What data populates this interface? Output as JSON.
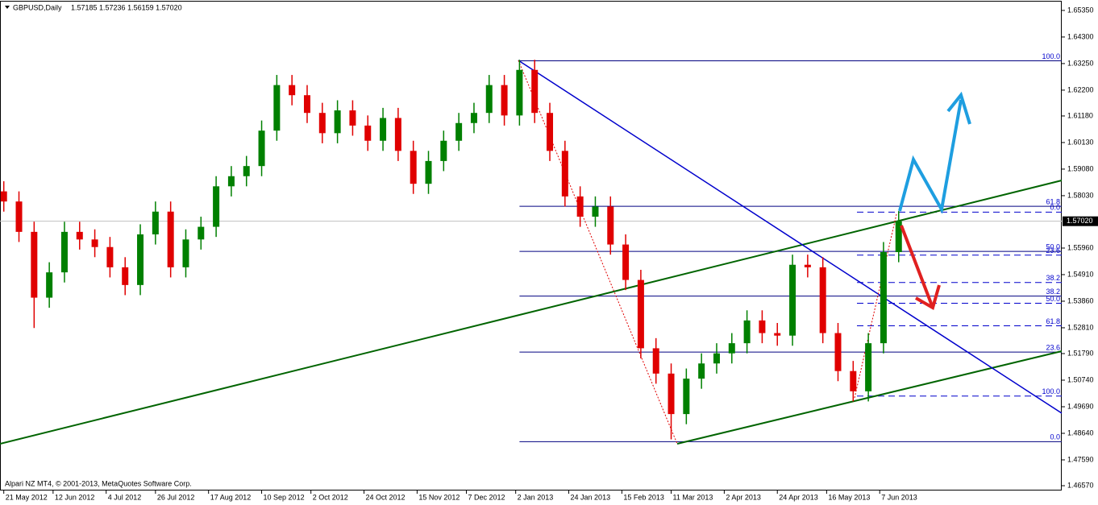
{
  "chart_data": {
    "type": "candlestick",
    "title": "GBPUSD,Daily",
    "ohlc_text": "1.57185 1.57236 1.56159 1.57020",
    "footer": "Alpari NZ MT4, © 2001-2013, MetaQuotes Software Corp.",
    "up_color": "#008000",
    "down_color": "#e00000",
    "grid": false,
    "xlim": [
      0,
      280
    ],
    "ylim": [
      1.4638,
      1.6573
    ],
    "xticks": [
      {
        "value": 1,
        "label": "21 May 2012"
      },
      {
        "value": 14,
        "label": "12 Jun 2012"
      },
      {
        "value": 28,
        "label": "4 Jul 2012"
      },
      {
        "value": 41,
        "label": "26 Jul 2012"
      },
      {
        "value": 55,
        "label": "17 Aug 2012"
      },
      {
        "value": 69,
        "label": "10 Sep 2012"
      },
      {
        "value": 82,
        "label": "2 Oct 2012"
      },
      {
        "value": 96,
        "label": "24 Oct 2012"
      },
      {
        "value": 110,
        "label": "15 Nov 2012"
      },
      {
        "value": 123,
        "label": "7 Dec 2012"
      },
      {
        "value": 136,
        "label": "2 Jan 2013"
      },
      {
        "value": 150,
        "label": "24 Jan 2013"
      },
      {
        "value": 164,
        "label": "15 Feb 2013"
      },
      {
        "value": 177,
        "label": "11 Mar 2013"
      },
      {
        "value": 191,
        "label": "2 Apr 2013"
      },
      {
        "value": 205,
        "label": "24 Apr 2013"
      },
      {
        "value": 218,
        "label": "16 May 2013"
      },
      {
        "value": 232,
        "label": "7 Jun 2013"
      }
    ],
    "yticks": [
      {
        "value": 1.6535,
        "label": "1.65350"
      },
      {
        "value": 1.643,
        "label": "1.64300"
      },
      {
        "value": 1.6325,
        "label": "1.63250"
      },
      {
        "value": 1.622,
        "label": "1.62200"
      },
      {
        "value": 1.6118,
        "label": "1.61180"
      },
      {
        "value": 1.6013,
        "label": "1.60130"
      },
      {
        "value": 1.5908,
        "label": "1.59080"
      },
      {
        "value": 1.5803,
        "label": "1.58030"
      },
      {
        "value": 1.5596,
        "label": "1.55960"
      },
      {
        "value": 1.5491,
        "label": "1.54910"
      },
      {
        "value": 1.5386,
        "label": "1.53860"
      },
      {
        "value": 1.5281,
        "label": "1.52810"
      },
      {
        "value": 1.5179,
        "label": "1.51790"
      },
      {
        "value": 1.5074,
        "label": "1.50740"
      },
      {
        "value": 1.4969,
        "label": "1.49690"
      },
      {
        "value": 1.4864,
        "label": "1.48640"
      },
      {
        "value": 1.4759,
        "label": "1.47590"
      },
      {
        "value": 1.4657,
        "label": "1.46570"
      }
    ],
    "current_price": {
      "value": 1.5702,
      "label": "1.57020"
    },
    "x": [
      1,
      5,
      9,
      13,
      17,
      21,
      25,
      29,
      33,
      37,
      41,
      45,
      49,
      53,
      57,
      61,
      65,
      69,
      73,
      77,
      81,
      85,
      89,
      93,
      97,
      101,
      105,
      109,
      113,
      117,
      121,
      125,
      129,
      133,
      137,
      141,
      145,
      149,
      153,
      157,
      161,
      165,
      169,
      173,
      177,
      181,
      185,
      189,
      193,
      197,
      201,
      205,
      209,
      213,
      217,
      221,
      225,
      229,
      233,
      237
    ],
    "open": [
      1.582,
      1.578,
      1.566,
      1.54,
      1.55,
      1.566,
      1.563,
      1.56,
      1.552,
      1.545,
      1.565,
      1.574,
      1.552,
      1.563,
      1.568,
      1.584,
      1.588,
      1.592,
      1.606,
      1.624,
      1.62,
      1.613,
      1.605,
      1.614,
      1.608,
      1.602,
      1.611,
      1.598,
      1.585,
      1.594,
      1.602,
      1.609,
      1.613,
      1.624,
      1.612,
      1.63,
      1.613,
      1.598,
      1.58,
      1.572,
      1.576,
      1.561,
      1.547,
      1.52,
      1.51,
      1.494,
      1.508,
      1.514,
      1.518,
      1.522,
      1.531,
      1.526,
      1.525,
      1.553,
      1.552,
      1.526,
      1.511,
      1.503,
      1.522,
      1.558
    ],
    "high": [
      1.586,
      1.582,
      1.57,
      1.554,
      1.57,
      1.57,
      1.567,
      1.564,
      1.556,
      1.569,
      1.578,
      1.578,
      1.567,
      1.572,
      1.588,
      1.592,
      1.596,
      1.61,
      1.628,
      1.628,
      1.624,
      1.617,
      1.618,
      1.618,
      1.612,
      1.615,
      1.615,
      1.602,
      1.598,
      1.606,
      1.613,
      1.617,
      1.628,
      1.628,
      1.634,
      1.634,
      1.617,
      1.602,
      1.584,
      1.58,
      1.58,
      1.565,
      1.551,
      1.524,
      1.514,
      1.512,
      1.518,
      1.522,
      1.526,
      1.535,
      1.535,
      1.53,
      1.557,
      1.557,
      1.556,
      1.53,
      1.515,
      1.526,
      1.562,
      1.5742
    ],
    "low": [
      1.574,
      1.562,
      1.528,
      1.536,
      1.546,
      1.559,
      1.556,
      1.548,
      1.541,
      1.541,
      1.561,
      1.548,
      1.548,
      1.559,
      1.564,
      1.58,
      1.584,
      1.588,
      1.602,
      1.616,
      1.609,
      1.601,
      1.601,
      1.604,
      1.598,
      1.598,
      1.594,
      1.581,
      1.581,
      1.59,
      1.598,
      1.605,
      1.609,
      1.608,
      1.608,
      1.609,
      1.594,
      1.576,
      1.568,
      1.568,
      1.557,
      1.543,
      1.516,
      1.506,
      1.484,
      1.49,
      1.504,
      1.51,
      1.514,
      1.518,
      1.522,
      1.521,
      1.521,
      1.548,
      1.522,
      1.507,
      1.499,
      1.499,
      1.518,
      1.554
    ],
    "close": [
      1.578,
      1.566,
      1.54,
      1.55,
      1.566,
      1.563,
      1.56,
      1.552,
      1.545,
      1.565,
      1.574,
      1.552,
      1.563,
      1.568,
      1.584,
      1.588,
      1.592,
      1.606,
      1.624,
      1.62,
      1.613,
      1.605,
      1.614,
      1.608,
      1.602,
      1.611,
      1.598,
      1.585,
      1.594,
      1.602,
      1.609,
      1.613,
      1.624,
      1.612,
      1.63,
      1.613,
      1.598,
      1.58,
      1.572,
      1.576,
      1.561,
      1.547,
      1.52,
      1.51,
      1.494,
      1.508,
      1.514,
      1.518,
      1.522,
      1.531,
      1.526,
      1.525,
      1.553,
      1.552,
      1.526,
      1.511,
      1.503,
      1.522,
      1.558,
      1.5702
    ],
    "fibonacci": [
      {
        "style": "solid",
        "start_x": 137,
        "levels": [
          {
            "value": 1.6336,
            "label": "100.0"
          },
          {
            "value": 1.5761,
            "label": "61.8"
          },
          {
            "value": 1.5583,
            "label": "50.0"
          },
          {
            "value": 1.5406,
            "label": "38.2"
          },
          {
            "value": 1.5185,
            "label": "23.6"
          },
          {
            "value": 1.4831,
            "label": "0.0"
          }
        ]
      },
      {
        "style": "dashed",
        "start_x": 226,
        "levels": [
          {
            "value": 1.5738,
            "label": "0.0"
          },
          {
            "value": 1.5568,
            "label": "23.6"
          },
          {
            "value": 1.546,
            "label": "38.2"
          },
          {
            "value": 1.5378,
            "label": "50.0"
          },
          {
            "value": 1.5289,
            "label": "61.8"
          },
          {
            "value": 1.5011,
            "label": "100.0"
          }
        ]
      }
    ]
  }
}
